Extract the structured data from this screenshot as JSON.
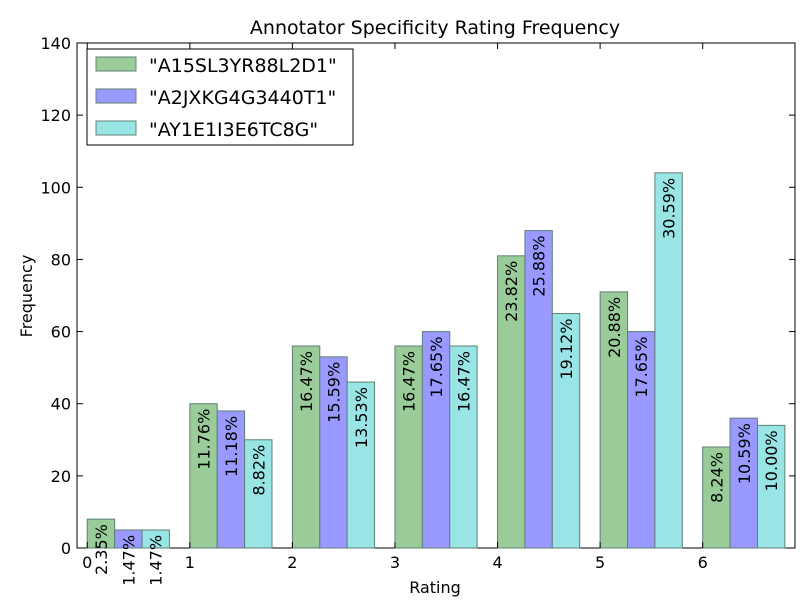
{
  "chart_data": {
    "type": "bar",
    "title": "Annotator Specificity Rating Frequency",
    "xlabel": "Rating",
    "ylabel": "Frequency",
    "categories": [
      "0",
      "1",
      "2",
      "3",
      "4",
      "5",
      "6"
    ],
    "ylim": [
      0,
      140
    ],
    "yticks": [
      "0",
      "20",
      "40",
      "60",
      "80",
      "100",
      "120",
      "140"
    ],
    "legend_position": "top-left",
    "grid": false,
    "series": [
      {
        "name": "\"A15SL3YR88L2D1\"",
        "color": "#99cc99",
        "values": [
          8,
          40,
          56,
          56,
          81,
          71,
          28
        ],
        "labels": [
          "2.35%",
          "11.76%",
          "16.47%",
          "16.47%",
          "23.82%",
          "20.88%",
          "8.24%"
        ]
      },
      {
        "name": "\"A2JXKG4G3440T1\"",
        "color": "#9999ff",
        "values": [
          5,
          38,
          53,
          60,
          88,
          60,
          36
        ],
        "labels": [
          "1.47%",
          "11.18%",
          "15.59%",
          "17.65%",
          "25.88%",
          "17.65%",
          "10.59%"
        ]
      },
      {
        "name": "\"AY1E1I3E6TC8G\"",
        "color": "#99e5e5",
        "values": [
          5,
          30,
          46,
          56,
          65,
          104,
          34
        ],
        "labels": [
          "1.47%",
          "8.82%",
          "13.53%",
          "16.47%",
          "19.12%",
          "30.59%",
          "10.00%"
        ]
      }
    ]
  }
}
